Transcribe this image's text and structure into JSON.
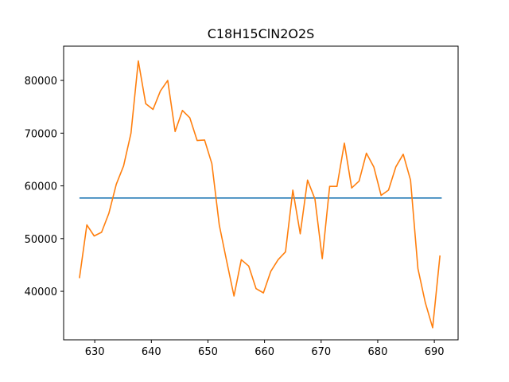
{
  "chart_data": {
    "type": "line",
    "title": "C18H15ClN2O2S",
    "xlabel": "",
    "ylabel": "",
    "xlim": [
      624.5,
      694.2
    ],
    "ylim": [
      30800,
      86500
    ],
    "xticks": [
      630,
      640,
      650,
      660,
      670,
      680,
      690
    ],
    "yticks": [
      40000,
      50000,
      60000,
      70000,
      80000
    ],
    "grid": false,
    "colors": {
      "reference": "#1f77b4",
      "signal": "#ff7f0e"
    },
    "series": [
      {
        "values_x": [
          627.3,
          691.3
        ],
        "values_y": [
          57700,
          57700
        ]
      },
      {
        "values_x": [
          627.3,
          628.6,
          629.9,
          631.2,
          632.5,
          633.8,
          635.1,
          636.4,
          637.7,
          639.0,
          640.3,
          641.6,
          642.9,
          644.2,
          645.5,
          646.8,
          648.1,
          649.4,
          650.7,
          652.0,
          653.3,
          654.6,
          655.9,
          657.2,
          658.5,
          659.8,
          661.1,
          662.4,
          663.7,
          665.0,
          666.3,
          667.6,
          668.9,
          670.2,
          671.5,
          672.8,
          674.1,
          675.4,
          676.7,
          678.0,
          679.3,
          680.6,
          681.9,
          683.2,
          684.5,
          685.8,
          687.1,
          688.4,
          689.7,
          691.0
        ],
        "values_y": [
          42500,
          52600,
          50500,
          51200,
          54800,
          60300,
          63800,
          70000,
          83700,
          75600,
          74500,
          78000,
          80000,
          70300,
          74300,
          72900,
          68600,
          68700,
          64200,
          52600,
          45800,
          39100,
          46000,
          44800,
          40500,
          39700,
          43800,
          46000,
          47500,
          59200,
          50900,
          61100,
          57500,
          46200,
          59900,
          59900,
          68100,
          59600,
          60900,
          66200,
          63600,
          58200,
          59200,
          63600,
          66000,
          61100,
          44300,
          37900,
          33100,
          46800
        ]
      }
    ]
  }
}
